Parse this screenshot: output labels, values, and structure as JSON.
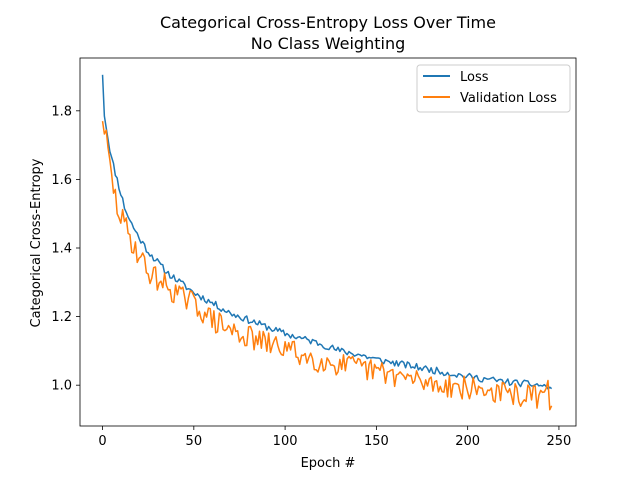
{
  "chart_data": {
    "type": "line",
    "title": "Categorical Cross-Entropy Loss Over Time",
    "subtitle": "No Class Weighting",
    "xlabel": "Epoch #",
    "ylabel": "Categorical Cross-Entropy",
    "xlim": [
      -12.35,
      259.35
    ],
    "ylim": [
      0.881,
      1.954
    ],
    "xticks": [
      0,
      50,
      100,
      150,
      200,
      250
    ],
    "yticks": [
      1.0,
      1.2,
      1.4,
      1.6,
      1.8
    ],
    "xtick_labels": [
      "0",
      "50",
      "100",
      "150",
      "200",
      "250"
    ],
    "ytick_labels": [
      "1.0",
      "1.2",
      "1.4",
      "1.6",
      "1.8"
    ],
    "grid": false,
    "legend_position": "top-right",
    "series": [
      {
        "name": "Loss",
        "color": "#1f77b4",
        "anchors": [
          [
            0,
            1.905
          ],
          [
            1,
            1.79
          ],
          [
            3,
            1.72
          ],
          [
            5,
            1.66
          ],
          [
            8,
            1.6
          ],
          [
            10,
            1.56
          ],
          [
            12,
            1.52
          ],
          [
            15,
            1.48
          ],
          [
            20,
            1.43
          ],
          [
            25,
            1.39
          ],
          [
            30,
            1.36
          ],
          [
            35,
            1.33
          ],
          [
            40,
            1.31
          ],
          [
            45,
            1.29
          ],
          [
            50,
            1.27
          ],
          [
            60,
            1.24
          ],
          [
            70,
            1.21
          ],
          [
            80,
            1.19
          ],
          [
            90,
            1.17
          ],
          [
            100,
            1.15
          ],
          [
            110,
            1.135
          ],
          [
            120,
            1.12
          ],
          [
            130,
            1.1
          ],
          [
            140,
            1.09
          ],
          [
            150,
            1.075
          ],
          [
            160,
            1.065
          ],
          [
            170,
            1.055
          ],
          [
            180,
            1.045
          ],
          [
            190,
            1.035
          ],
          [
            200,
            1.025
          ],
          [
            210,
            1.018
          ],
          [
            220,
            1.01
          ],
          [
            230,
            1.005
          ],
          [
            240,
            1.0
          ],
          [
            246,
            0.99
          ]
        ],
        "noise": 0.01,
        "seed": 11
      },
      {
        "name": "Validation Loss",
        "color": "#ff7f0e",
        "anchors": [
          [
            0,
            1.77
          ],
          [
            1,
            1.75
          ],
          [
            3,
            1.68
          ],
          [
            5,
            1.6
          ],
          [
            8,
            1.52
          ],
          [
            10,
            1.49
          ],
          [
            12,
            1.47
          ],
          [
            15,
            1.43
          ],
          [
            20,
            1.38
          ],
          [
            25,
            1.33
          ],
          [
            30,
            1.31
          ],
          [
            35,
            1.29
          ],
          [
            40,
            1.27
          ],
          [
            45,
            1.25
          ],
          [
            50,
            1.24
          ],
          [
            60,
            1.19
          ],
          [
            70,
            1.16
          ],
          [
            80,
            1.14
          ],
          [
            90,
            1.12
          ],
          [
            100,
            1.11
          ],
          [
            110,
            1.085
          ],
          [
            120,
            1.07
          ],
          [
            130,
            1.06
          ],
          [
            140,
            1.05
          ],
          [
            150,
            1.04
          ],
          [
            160,
            1.03
          ],
          [
            170,
            1.015
          ],
          [
            180,
            1.005
          ],
          [
            190,
            1.0
          ],
          [
            200,
            0.99
          ],
          [
            210,
            0.985
          ],
          [
            220,
            0.975
          ],
          [
            230,
            0.97
          ],
          [
            240,
            0.965
          ],
          [
            244,
            0.98
          ],
          [
            246,
            0.94
          ]
        ],
        "noise": 0.035,
        "seed": 29
      }
    ]
  }
}
